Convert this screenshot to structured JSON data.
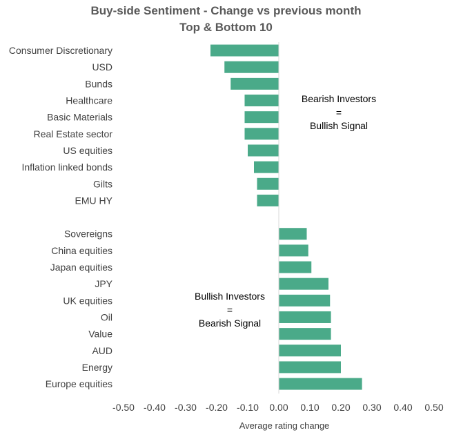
{
  "chart_data": {
    "type": "bar",
    "orientation": "horizontal",
    "title": "Buy-side Sentiment - Change vs previous month",
    "subtitle": "Top & Bottom 10",
    "xlabel": "Average rating change",
    "ylabel": "",
    "xlim": [
      -0.5,
      0.5
    ],
    "xticks": [
      "-0.50",
      "-0.40",
      "-0.30",
      "-0.20",
      "-0.10",
      "0.00",
      "0.10",
      "0.20",
      "0.30",
      "0.40",
      "0.50"
    ],
    "grid": false,
    "legend": false,
    "bar_color": "#4aaa89",
    "categories": [
      "Consumer Discretionary",
      "USD",
      "Bunds",
      "Healthcare",
      "Basic Materials",
      "Real Estate sector",
      "US equities",
      "Inflation linked bonds",
      "Gilts",
      "EMU HY",
      "",
      "Sovereigns",
      "China equities",
      "Japan equities",
      "JPY",
      "UK equities",
      "Oil",
      "Value",
      "AUD",
      "Energy",
      "Europe equities"
    ],
    "values": [
      -0.22,
      -0.175,
      -0.155,
      -0.11,
      -0.11,
      -0.11,
      -0.1,
      -0.08,
      -0.07,
      -0.07,
      null,
      0.09,
      0.095,
      0.105,
      0.16,
      0.165,
      0.168,
      0.168,
      0.2,
      0.2,
      0.268
    ],
    "annotations": [
      {
        "lines": [
          "Bearish Investors",
          "=",
          "Bullish Signal"
        ]
      },
      {
        "lines": [
          "Bullish Investors",
          "=",
          "Bearish Signal"
        ]
      }
    ]
  }
}
